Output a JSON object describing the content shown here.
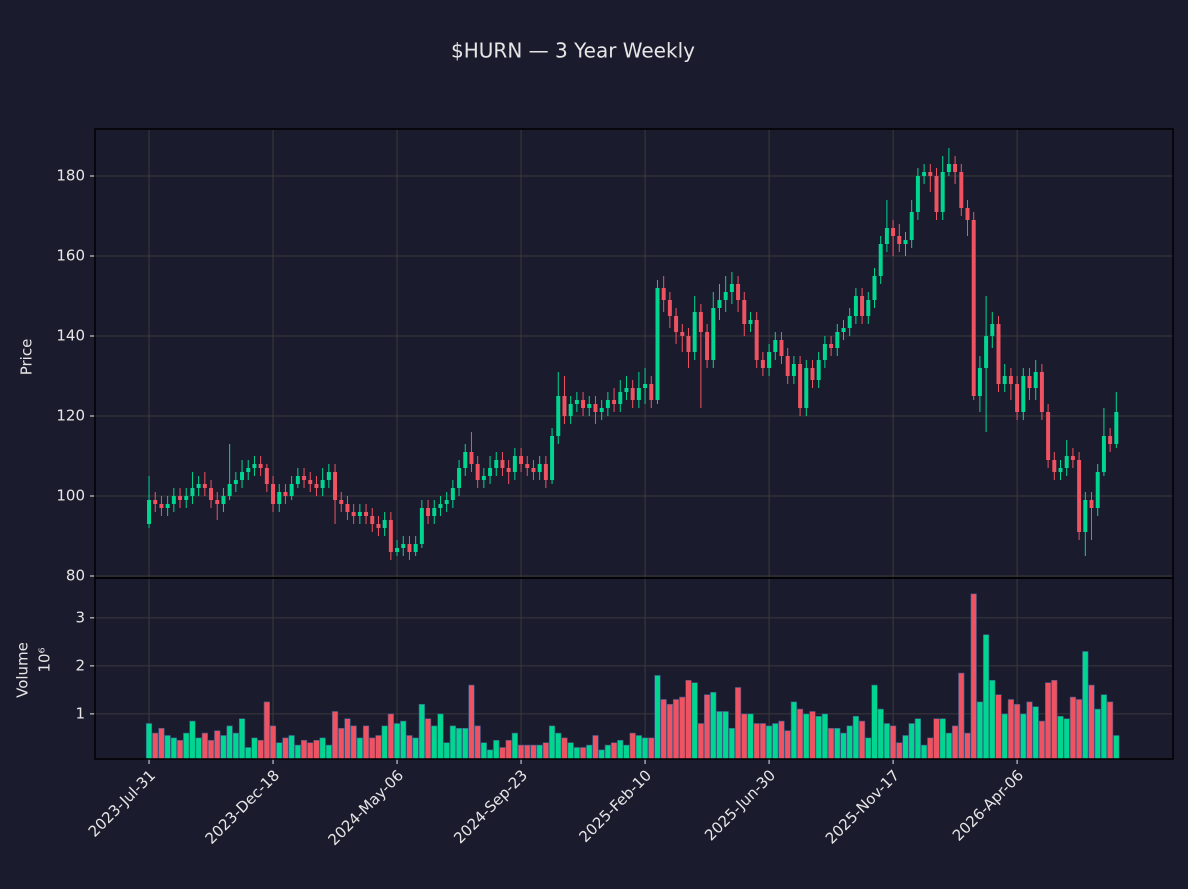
{
  "chart_data": {
    "type": "candlestick",
    "title": "$HURN — 3 Year Weekly",
    "ylabel": "Price",
    "volume_ylabel": "Volume",
    "volume_scale": "10⁶",
    "up_color": "#00d68f",
    "down_color": "#ef5361",
    "grid": true,
    "x": [
      "2023-07-31",
      "2023-08-07",
      "2023-08-14",
      "2023-08-21",
      "2023-08-28",
      "2023-09-04",
      "2023-09-11",
      "2023-09-18",
      "2023-09-25",
      "2023-10-02",
      "2023-10-09",
      "2023-10-16",
      "2023-10-23",
      "2023-10-30",
      "2023-11-06",
      "2023-11-13",
      "2023-11-20",
      "2023-11-27",
      "2023-12-04",
      "2023-12-11",
      "2023-12-18",
      "2023-12-25",
      "2024-01-01",
      "2024-01-08",
      "2024-01-15",
      "2024-01-22",
      "2024-01-29",
      "2024-02-05",
      "2024-02-12",
      "2024-02-19",
      "2024-02-26",
      "2024-03-04",
      "2024-03-11",
      "2024-03-18",
      "2024-03-25",
      "2024-04-01",
      "2024-04-08",
      "2024-04-15",
      "2024-04-22",
      "2024-04-29",
      "2024-05-06",
      "2024-05-13",
      "2024-05-20",
      "2024-05-27",
      "2024-06-03",
      "2024-06-10",
      "2024-06-17",
      "2024-06-24",
      "2024-07-01",
      "2024-07-08",
      "2024-07-15",
      "2024-07-22",
      "2024-07-29",
      "2024-08-05",
      "2024-08-12",
      "2024-08-19",
      "2024-08-26",
      "2024-09-02",
      "2024-09-09",
      "2024-09-16",
      "2024-09-23",
      "2024-09-30",
      "2024-10-07",
      "2024-10-14",
      "2024-10-21",
      "2024-10-28",
      "2024-11-04",
      "2024-11-11",
      "2024-11-18",
      "2024-11-25",
      "2024-12-02",
      "2024-12-09",
      "2024-12-16",
      "2024-12-23",
      "2024-12-30",
      "2025-01-06",
      "2025-01-13",
      "2025-01-20",
      "2025-01-27",
      "2025-02-03",
      "2025-02-10",
      "2025-02-17",
      "2025-02-24",
      "2025-03-03",
      "2025-03-10",
      "2025-03-17",
      "2025-03-24",
      "2025-03-31",
      "2025-04-07",
      "2025-04-14",
      "2025-04-21",
      "2025-04-28",
      "2025-05-05",
      "2025-05-12",
      "2025-05-19",
      "2025-05-26",
      "2025-06-02",
      "2025-06-09",
      "2025-06-16",
      "2025-06-23",
      "2025-06-30",
      "2025-07-07",
      "2025-07-14",
      "2025-07-21",
      "2025-07-28",
      "2025-08-04",
      "2025-08-11",
      "2025-08-18",
      "2025-08-25",
      "2025-09-01",
      "2025-09-08",
      "2025-09-15",
      "2025-09-22",
      "2025-09-29",
      "2025-10-06",
      "2025-10-13",
      "2025-10-20",
      "2025-10-27",
      "2025-11-03",
      "2025-11-10",
      "2025-11-17",
      "2025-11-24",
      "2025-12-01",
      "2025-12-08",
      "2025-12-15",
      "2025-12-22",
      "2025-12-29",
      "2026-01-05",
      "2026-01-12",
      "2026-01-19",
      "2026-01-26",
      "2026-02-02",
      "2026-02-09",
      "2026-02-16",
      "2026-02-23",
      "2026-03-02",
      "2026-03-09",
      "2026-03-16",
      "2026-03-23",
      "2026-03-30",
      "2026-04-06",
      "2026-04-13",
      "2026-04-20",
      "2026-04-27",
      "2026-05-04",
      "2026-05-11",
      "2026-05-18",
      "2026-05-25",
      "2026-06-01",
      "2026-06-08",
      "2026-06-15",
      "2026-06-22",
      "2026-06-29",
      "2026-07-06",
      "2026-07-13",
      "2026-07-20",
      "2026-07-27"
    ],
    "open": [
      93,
      99,
      98,
      97,
      98,
      100,
      99,
      100,
      102,
      103,
      102,
      99,
      98,
      100,
      103,
      104,
      106,
      107,
      108,
      107,
      103,
      98,
      101,
      100,
      103,
      105,
      104,
      103,
      102,
      104,
      106,
      99,
      98,
      96,
      95,
      96,
      95,
      93,
      92,
      94,
      86,
      87,
      88,
      86,
      88,
      97,
      95,
      97,
      98,
      99,
      102,
      107,
      111,
      108,
      104,
      105,
      107,
      109,
      107,
      106,
      110,
      108,
      107,
      106,
      108,
      104,
      115,
      125,
      120,
      123,
      124,
      122,
      123,
      121,
      122,
      124,
      123,
      126,
      127,
      124,
      127,
      128,
      124,
      152,
      149,
      145,
      141,
      140,
      136,
      146,
      141,
      134,
      147,
      149,
      151,
      153,
      149,
      143,
      144,
      134,
      132,
      136,
      139,
      135,
      130,
      133,
      122,
      132,
      129,
      134,
      138,
      137,
      141,
      142,
      145,
      150,
      145,
      149,
      155,
      163,
      167,
      165,
      163,
      164,
      171,
      180,
      181,
      180,
      171,
      181,
      183,
      181,
      172,
      169,
      125,
      132,
      140,
      143,
      128,
      130,
      128,
      121,
      130,
      127,
      131,
      121,
      109,
      106,
      107,
      110,
      109,
      91,
      99,
      97,
      106,
      115,
      113
    ],
    "high": [
      105,
      101,
      100,
      100,
      102,
      102,
      102,
      106,
      105,
      106,
      104,
      101,
      102,
      113,
      106,
      109,
      109,
      110,
      110,
      108,
      105,
      103,
      103,
      105,
      107,
      107,
      106,
      105,
      107,
      108,
      108,
      101,
      100,
      98,
      98,
      98,
      97,
      95,
      96,
      96,
      89,
      90,
      90,
      90,
      99,
      99,
      99,
      100,
      101,
      104,
      109,
      113,
      116,
      110,
      107,
      110,
      111,
      111,
      109,
      112,
      112,
      110,
      109,
      110,
      110,
      117,
      131,
      130,
      125,
      126,
      126,
      125,
      125,
      124,
      126,
      127,
      129,
      130,
      129,
      131,
      132,
      130,
      154,
      155,
      151,
      147,
      143,
      142,
      150,
      148,
      143,
      151,
      153,
      155,
      156,
      155,
      151,
      146,
      146,
      136,
      138,
      141,
      141,
      137,
      135,
      135,
      134,
      134,
      136,
      140,
      140,
      143,
      144,
      147,
      152,
      152,
      151,
      157,
      165,
      174,
      169,
      168,
      166,
      174,
      182,
      183,
      183,
      182,
      185,
      187,
      185,
      183,
      174,
      171,
      135,
      150,
      146,
      145,
      133,
      132,
      130,
      132,
      132,
      134,
      133,
      123,
      111,
      109,
      114,
      112,
      111,
      101,
      101,
      108,
      122,
      117,
      126
    ],
    "low": [
      92,
      96,
      95,
      95,
      96,
      97,
      97,
      98,
      100,
      100,
      97,
      94,
      96,
      99,
      101,
      102,
      104,
      105,
      105,
      101,
      96,
      96,
      98,
      99,
      102,
      102,
      101,
      100,
      100,
      102,
      93,
      96,
      94,
      93,
      93,
      93,
      91,
      90,
      90,
      84,
      85,
      85,
      84,
      85,
      87,
      93,
      93,
      95,
      96,
      97,
      100,
      105,
      106,
      102,
      102,
      103,
      105,
      105,
      103,
      104,
      106,
      105,
      104,
      104,
      102,
      103,
      113,
      118,
      118,
      121,
      120,
      120,
      118,
      119,
      120,
      121,
      121,
      124,
      122,
      122,
      123,
      122,
      123,
      146,
      142,
      138,
      136,
      132,
      134,
      122,
      132,
      132,
      144,
      146,
      148,
      146,
      140,
      141,
      132,
      130,
      130,
      134,
      133,
      128,
      128,
      120,
      120,
      127,
      127,
      132,
      135,
      135,
      139,
      140,
      143,
      143,
      143,
      147,
      153,
      161,
      160,
      161,
      160,
      162,
      169,
      178,
      176,
      169,
      169,
      180,
      178,
      170,
      165,
      124,
      121,
      116,
      137,
      126,
      126,
      124,
      119,
      119,
      124,
      124,
      119,
      107,
      104,
      104,
      105,
      107,
      89,
      85,
      89,
      95,
      105,
      111,
      112
    ],
    "close": [
      99,
      98,
      97,
      98,
      100,
      99,
      100,
      102,
      103,
      102,
      99,
      98,
      100,
      103,
      104,
      106,
      107,
      108,
      107,
      103,
      98,
      101,
      100,
      103,
      105,
      104,
      103,
      102,
      104,
      106,
      99,
      98,
      96,
      95,
      96,
      95,
      93,
      92,
      94,
      86,
      87,
      88,
      86,
      88,
      97,
      95,
      97,
      98,
      99,
      102,
      107,
      111,
      108,
      104,
      105,
      107,
      109,
      107,
      106,
      110,
      108,
      107,
      106,
      108,
      104,
      115,
      125,
      120,
      123,
      124,
      122,
      123,
      121,
      122,
      124,
      123,
      126,
      127,
      124,
      127,
      128,
      124,
      152,
      149,
      145,
      141,
      140,
      136,
      146,
      141,
      134,
      147,
      149,
      151,
      153,
      149,
      143,
      144,
      134,
      132,
      136,
      139,
      135,
      130,
      133,
      122,
      132,
      129,
      134,
      138,
      137,
      141,
      142,
      145,
      150,
      145,
      149,
      155,
      163,
      167,
      165,
      163,
      164,
      171,
      180,
      181,
      180,
      171,
      181,
      183,
      181,
      172,
      169,
      125,
      132,
      140,
      143,
      128,
      130,
      128,
      121,
      130,
      127,
      131,
      121,
      109,
      106,
      107,
      110,
      109,
      91,
      99,
      97,
      106,
      115,
      113,
      121
    ],
    "volume": [
      0.8,
      0.6,
      0.7,
      0.55,
      0.5,
      0.45,
      0.6,
      0.85,
      0.5,
      0.6,
      0.45,
      0.65,
      0.55,
      0.75,
      0.6,
      0.9,
      0.3,
      0.5,
      0.45,
      1.25,
      0.75,
      0.4,
      0.5,
      0.55,
      0.35,
      0.45,
      0.4,
      0.45,
      0.5,
      0.35,
      1.05,
      0.7,
      0.9,
      0.75,
      0.5,
      0.75,
      0.5,
      0.55,
      0.75,
      1.0,
      0.8,
      0.85,
      0.55,
      0.5,
      1.2,
      0.9,
      0.75,
      1.0,
      0.4,
      0.75,
      0.7,
      0.7,
      1.6,
      0.75,
      0.4,
      0.25,
      0.45,
      0.3,
      0.45,
      0.6,
      0.35,
      0.35,
      0.35,
      0.35,
      0.4,
      0.75,
      0.6,
      0.5,
      0.4,
      0.3,
      0.3,
      0.35,
      0.55,
      0.25,
      0.35,
      0.4,
      0.45,
      0.35,
      0.6,
      0.55,
      0.5,
      0.5,
      1.8,
      1.3,
      1.2,
      1.3,
      1.35,
      1.7,
      1.65,
      0.8,
      1.4,
      1.45,
      1.05,
      1.05,
      0.7,
      1.55,
      1.0,
      1.0,
      0.8,
      0.8,
      0.75,
      0.8,
      0.85,
      0.65,
      1.25,
      1.1,
      1.0,
      1.05,
      0.95,
      1.0,
      0.7,
      0.7,
      0.6,
      0.75,
      0.95,
      0.85,
      0.5,
      1.6,
      1.1,
      0.8,
      0.75,
      0.4,
      0.55,
      0.8,
      0.9,
      0.35,
      0.5,
      0.9,
      0.9,
      0.6,
      0.75,
      1.85,
      0.6,
      3.5,
      1.25,
      2.65,
      1.7,
      1.4,
      1.0,
      1.3,
      1.2,
      1.0,
      1.25,
      1.15,
      0.85,
      1.65,
      1.7,
      0.95,
      0.9,
      1.35,
      1.3,
      2.3,
      1.6,
      1.1,
      1.4,
      1.25,
      0.55
    ],
    "xlim": [
      "2023-05-31",
      "2026-09-29"
    ],
    "xticks": [
      {
        "value": "2023-07-31",
        "label": "2023-Jul-31"
      },
      {
        "value": "2023-12-18",
        "label": "2023-Dec-18"
      },
      {
        "value": "2024-05-06",
        "label": "2024-May-06"
      },
      {
        "value": "2024-09-23",
        "label": "2024-Sep-23"
      },
      {
        "value": "2025-02-10",
        "label": "2025-Feb-10"
      },
      {
        "value": "2025-06-30",
        "label": "2025-Jun-30"
      },
      {
        "value": "2025-11-17",
        "label": "2025-Nov-17"
      },
      {
        "value": "2026-04-06",
        "label": "2026-Apr-06"
      }
    ],
    "ylim": [
      79.5,
      191.75
    ],
    "yticks": [
      80,
      100,
      120,
      140,
      160,
      180
    ],
    "volume_ylim": [
      0.06,
      3.83
    ],
    "volume_yticks": [
      1,
      2,
      3
    ]
  }
}
